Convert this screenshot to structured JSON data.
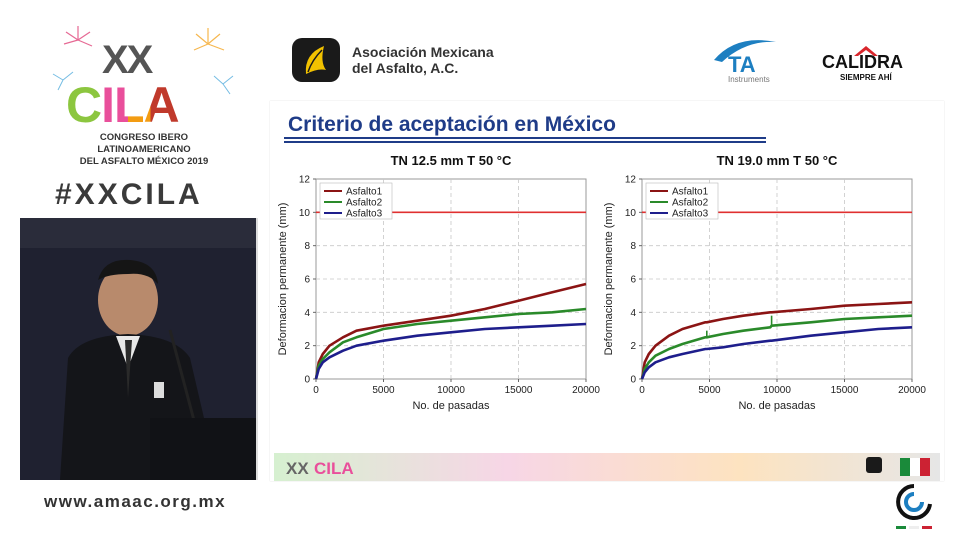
{
  "event": {
    "roman": "XX",
    "name": "CILA",
    "congress_line1": "CONGRESO IBERO LATINOAMERICANO",
    "congress_line2": "DEL ASFALTO MÉXICO 2019",
    "hashtag": "#XXCILA",
    "website": "www.amaac.org.mx"
  },
  "sponsors": {
    "amaac_line1": "Asociación Mexicana",
    "amaac_line2": "del Asfalto, A.C.",
    "ta_name": "TA",
    "ta_sub": "Instruments",
    "calidra_name": "CALIDRA",
    "calidra_tagline": "SIEMPRE AHÍ"
  },
  "slide": {
    "title": "Criterio de aceptación en México"
  },
  "colors": {
    "asfalto1": "#8b1414",
    "asfalto2": "#2a8a2a",
    "asfalto3": "#1e1e8c",
    "criterion": "#e03030",
    "title_blue": "#1f3c88"
  },
  "chart_data": [
    {
      "type": "line",
      "title": "TN 12.5 mm T 50 °C",
      "xlabel": "No. de pasadas",
      "ylabel": "Deformacion permanente (mm)",
      "xlim": [
        0,
        20000
      ],
      "ylim": [
        0,
        12
      ],
      "xticks": [
        "0",
        "5000",
        "10000",
        "15000",
        "20000"
      ],
      "yticks": [
        "0",
        "2",
        "4",
        "6",
        "8",
        "10",
        "12"
      ],
      "grid": true,
      "legend": "top-left",
      "criterion": 10,
      "x": [
        0,
        200,
        500,
        1000,
        2000,
        3000,
        5000,
        7500,
        10000,
        12500,
        15000,
        17500,
        20000
      ],
      "series": [
        {
          "name": "Asfalto1",
          "values": [
            0,
            1.0,
            1.5,
            2.0,
            2.5,
            2.9,
            3.2,
            3.5,
            3.8,
            4.2,
            4.7,
            5.2,
            5.7
          ]
        },
        {
          "name": "Asfalto2",
          "values": [
            0,
            0.8,
            1.2,
            1.6,
            2.2,
            2.5,
            3.0,
            3.3,
            3.5,
            3.7,
            3.9,
            4.0,
            4.2
          ]
        },
        {
          "name": "Asfalto3",
          "values": [
            0,
            0.6,
            1.0,
            1.3,
            1.7,
            2.0,
            2.3,
            2.6,
            2.8,
            3.0,
            3.1,
            3.2,
            3.3
          ]
        }
      ]
    },
    {
      "type": "line",
      "title": "TN 19.0 mm T 50 °C",
      "xlabel": "No. de pasadas",
      "ylabel": "Deformacion permanente (mm)",
      "xlim": [
        0,
        20000
      ],
      "ylim": [
        0,
        12
      ],
      "xticks": [
        "0",
        "5000",
        "10000",
        "15000",
        "20000"
      ],
      "yticks": [
        "0",
        "2",
        "4",
        "6",
        "8",
        "10",
        "12"
      ],
      "grid": true,
      "legend": "top-left",
      "criterion": 10,
      "x": [
        0,
        200,
        500,
        1000,
        2000,
        3000,
        4700,
        4800,
        6000,
        7500,
        9500,
        9600,
        12500,
        15000,
        17500,
        20000
      ],
      "series": [
        {
          "name": "Asfalto1",
          "values": [
            0,
            1.0,
            1.5,
            2.0,
            2.6,
            3.0,
            3.4,
            3.4,
            3.6,
            3.8,
            4.0,
            4.0,
            4.2,
            4.4,
            4.5,
            4.6
          ]
        },
        {
          "name": "Asfalto2",
          "values": [
            0,
            0.6,
            1.0,
            1.4,
            1.8,
            2.1,
            2.5,
            2.5,
            2.7,
            2.9,
            3.1,
            3.2,
            3.4,
            3.6,
            3.7,
            3.8
          ]
        },
        {
          "name": "Asfalto3",
          "values": [
            0,
            0.4,
            0.7,
            1.0,
            1.3,
            1.5,
            1.8,
            1.8,
            1.9,
            2.1,
            2.3,
            2.3,
            2.6,
            2.8,
            3.0,
            3.1
          ]
        }
      ],
      "spikes": [
        {
          "series": "Asfalto2",
          "x": 4800,
          "from": 2.5,
          "to": 2.9
        },
        {
          "series": "Asfalto2",
          "x": 9600,
          "from": 3.2,
          "to": 3.8
        }
      ]
    }
  ]
}
